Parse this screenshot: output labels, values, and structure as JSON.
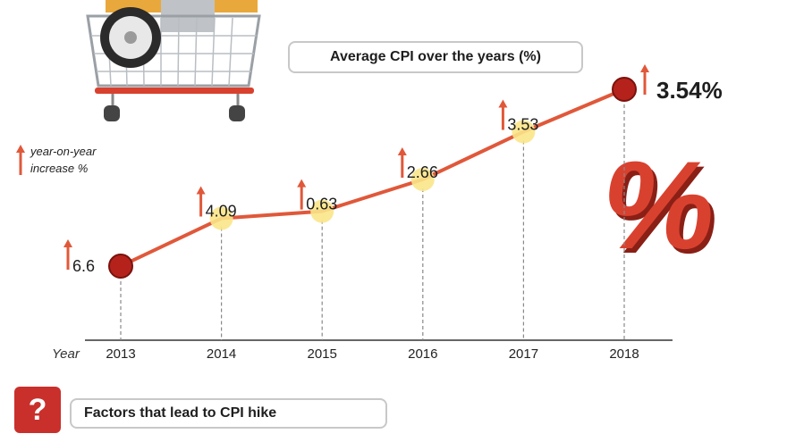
{
  "title": "Average CPI over the years (%)",
  "legend": {
    "line1": "year-on-year",
    "line2": "increase %"
  },
  "x_axis_label": "Year",
  "factors_title": "Factors that lead to CPI hike",
  "factors_icon": "?",
  "percent_symbol": "%",
  "colors": {
    "line": "#e0583a",
    "marker_end": "#b5221c",
    "marker_mid": "#fbe58a",
    "arrow": "#e0583a",
    "question_bg": "#c9302c"
  },
  "chart_data": {
    "type": "line",
    "title": "Average CPI over the years (%)",
    "xlabel": "Year",
    "ylabel": "",
    "categories": [
      "2013",
      "2014",
      "2015",
      "2016",
      "2017",
      "2018"
    ],
    "values": [
      6.6,
      4.09,
      0.63,
      2.66,
      3.53,
      3.54
    ],
    "labels": [
      "6.6",
      "4.09",
      "0.63",
      "2.66",
      "3.53",
      "3.54%"
    ],
    "trend_direction": "up",
    "grid": false
  }
}
